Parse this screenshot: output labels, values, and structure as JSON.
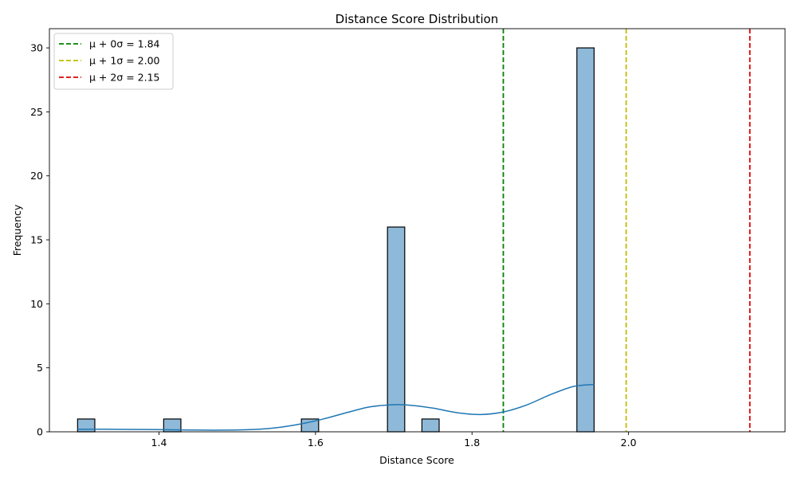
{
  "chart_data": {
    "type": "bar",
    "title": "Distance Score Distribution",
    "xlabel": "Distance Score",
    "ylabel": "Frequency",
    "xlim": [
      1.26,
      2.2
    ],
    "ylim": [
      0,
      31.5
    ],
    "x_ticks": [
      1.4,
      1.6,
      1.8,
      2.0
    ],
    "x_tick_labels": [
      "1.4",
      "1.6",
      "1.8",
      "2.0"
    ],
    "y_ticks": [
      0,
      5,
      10,
      15,
      20,
      25,
      30
    ],
    "y_tick_labels": [
      "0",
      "5",
      "10",
      "15",
      "20",
      "25",
      "30"
    ],
    "grid": false,
    "legend_position": "top-left",
    "bar_color": "#8fb9d8",
    "bar_edge_color": "#000000",
    "kde_color": "#1f77b4",
    "bin_width": 0.022,
    "bins": [
      {
        "x_start": 1.296,
        "count": 1
      },
      {
        "x_start": 1.406,
        "count": 1
      },
      {
        "x_start": 1.582,
        "count": 1
      },
      {
        "x_start": 1.692,
        "count": 16
      },
      {
        "x_start": 1.736,
        "count": 1
      },
      {
        "x_start": 1.934,
        "count": 30
      }
    ],
    "kde": {
      "x": [
        1.296,
        1.33,
        1.36,
        1.4,
        1.44,
        1.48,
        1.52,
        1.55,
        1.58,
        1.61,
        1.64,
        1.67,
        1.7,
        1.72,
        1.75,
        1.78,
        1.81,
        1.84,
        1.87,
        1.9,
        1.93,
        1.956
      ],
      "y": [
        0.2,
        0.2,
        0.19,
        0.17,
        0.14,
        0.13,
        0.18,
        0.32,
        0.6,
        1.0,
        1.5,
        1.95,
        2.12,
        2.08,
        1.85,
        1.5,
        1.35,
        1.55,
        2.1,
        2.9,
        3.55,
        3.7
      ]
    },
    "series": [
      {
        "name": "μ + 0σ = 1.84",
        "value": 1.84,
        "color": "#008000"
      },
      {
        "name": "μ + 1σ = 2.00",
        "value": 1.997,
        "color": "#bfbf00"
      },
      {
        "name": "μ + 2σ = 2.15",
        "value": 2.155,
        "color": "#e00000"
      }
    ]
  }
}
